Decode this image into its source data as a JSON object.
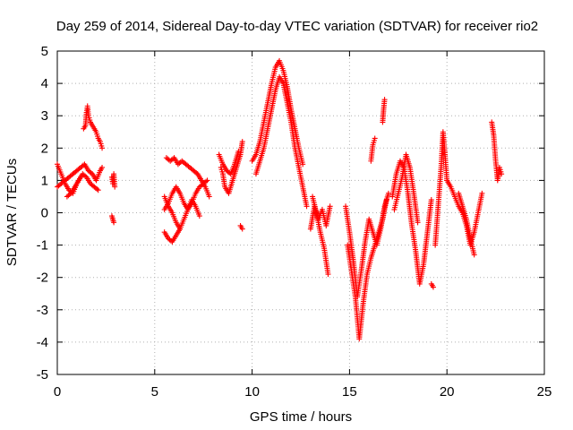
{
  "chart_data": {
    "type": "scatter",
    "title": "Day 259 of 2014, Sidereal Day-to-day VTEC variation (SDTVAR) for receiver rio2",
    "xlabel": "GPS time / hours",
    "ylabel": "SDTVAR / TECUs",
    "xlim": [
      0,
      25
    ],
    "ylim": [
      -5,
      5
    ],
    "xticks": [
      0,
      5,
      10,
      15,
      20,
      25
    ],
    "yticks": [
      -5,
      -4,
      -3,
      -2,
      -1,
      0,
      1,
      2,
      3,
      4,
      5
    ],
    "grid": true,
    "marker": "+",
    "color": "#ff0000",
    "series": [
      {
        "name": "SDTVAR",
        "segments": [
          {
            "x": [
              0.0,
              0.2,
              0.4,
              0.6,
              0.8,
              1.0,
              1.2,
              1.4,
              1.6,
              1.8,
              2.0,
              2.2,
              2.3
            ],
            "y": [
              0.8,
              0.9,
              1.0,
              1.1,
              1.2,
              1.3,
              1.4,
              1.5,
              1.3,
              1.2,
              1.0,
              1.3,
              1.4
            ]
          },
          {
            "x": [
              0.0,
              0.2,
              0.4,
              0.6,
              0.8,
              1.0,
              1.2
            ],
            "y": [
              1.5,
              1.2,
              0.9,
              0.7,
              0.6,
              0.9,
              1.1
            ]
          },
          {
            "x": [
              0.5,
              0.7,
              0.9,
              1.1,
              1.3,
              1.5,
              1.7,
              1.9,
              2.1
            ],
            "y": [
              0.5,
              0.6,
              0.8,
              1.0,
              1.2,
              1.1,
              0.9,
              0.8,
              0.7
            ]
          },
          {
            "x": [
              1.35,
              1.45,
              1.5,
              1.55,
              1.6,
              1.7,
              1.8,
              1.9,
              2.0,
              2.1,
              2.2,
              2.3
            ],
            "y": [
              2.6,
              2.7,
              3.1,
              3.3,
              3.0,
              2.8,
              2.7,
              2.6,
              2.5,
              2.3,
              2.2,
              2.0
            ]
          },
          {
            "x": [
              2.8,
              2.85,
              2.9,
              2.95
            ],
            "y": [
              1.1,
              0.9,
              1.2,
              0.8
            ]
          },
          {
            "x": [
              2.8,
              2.85,
              2.9
            ],
            "y": [
              -0.1,
              -0.2,
              -0.3
            ]
          },
          {
            "x": [
              5.5,
              5.7,
              5.9,
              6.1,
              6.3,
              6.5,
              6.7,
              6.9,
              7.1,
              7.3,
              7.5,
              7.7
            ],
            "y": [
              0.1,
              0.3,
              0.6,
              0.8,
              0.6,
              0.3,
              0.1,
              0.3,
              0.6,
              0.8,
              0.9,
              1.0
            ]
          },
          {
            "x": [
              5.5,
              5.7,
              5.9,
              6.1,
              6.3,
              6.5,
              6.7,
              6.9,
              7.1,
              7.3
            ],
            "y": [
              0.5,
              0.2,
              0.0,
              -0.3,
              -0.5,
              -0.2,
              0.1,
              0.4,
              0.2,
              -0.1
            ]
          },
          {
            "x": [
              5.5,
              5.7,
              5.9,
              6.1,
              6.3
            ],
            "y": [
              -0.6,
              -0.8,
              -0.9,
              -0.7,
              -0.5
            ]
          },
          {
            "x": [
              5.6,
              5.8,
              6.0,
              6.2,
              6.4,
              6.6,
              6.8,
              7.0,
              7.2,
              7.4,
              7.6,
              7.8
            ],
            "y": [
              1.7,
              1.6,
              1.7,
              1.5,
              1.6,
              1.5,
              1.4,
              1.3,
              1.2,
              1.0,
              0.8,
              0.5
            ]
          },
          {
            "x": [
              8.4,
              8.5,
              8.6,
              8.8,
              9.0,
              9.2,
              9.4,
              9.5
            ],
            "y": [
              1.4,
              1.2,
              0.8,
              0.6,
              1.0,
              1.4,
              1.8,
              2.2
            ]
          },
          {
            "x": [
              8.3,
              8.5,
              8.7,
              8.9,
              9.1,
              9.3
            ],
            "y": [
              1.8,
              1.5,
              1.3,
              1.2,
              1.5,
              1.9
            ]
          },
          {
            "x": [
              9.4,
              9.5
            ],
            "y": [
              -0.4,
              -0.5
            ]
          },
          {
            "x": [
              10.0,
              10.2,
              10.4,
              10.6,
              10.8,
              11.0,
              11.2,
              11.4,
              11.6,
              11.8,
              12.0,
              12.2,
              12.4,
              12.6
            ],
            "y": [
              1.6,
              1.8,
              2.2,
              2.8,
              3.4,
              4.0,
              4.5,
              4.7,
              4.4,
              3.9,
              3.2,
              2.6,
              2.0,
              1.5
            ]
          },
          {
            "x": [
              10.2,
              10.4,
              10.6,
              10.8,
              11.0,
              11.2,
              11.4,
              11.6,
              11.8,
              12.0,
              12.2,
              12.4,
              12.6,
              12.8
            ],
            "y": [
              1.2,
              1.6,
              2.0,
              2.6,
              3.2,
              3.8,
              4.2,
              4.0,
              3.4,
              2.8,
              2.0,
              1.4,
              0.8,
              0.2
            ]
          },
          {
            "x": [
              13.0,
              13.2,
              13.4,
              13.6,
              13.8,
              14.0
            ],
            "y": [
              -0.5,
              0.2,
              -0.2,
              0.1,
              -0.4,
              0.2
            ]
          },
          {
            "x": [
              13.1,
              13.3,
              13.5,
              13.7,
              13.9
            ],
            "y": [
              0.5,
              0.0,
              -0.6,
              -1.1,
              -1.9
            ]
          },
          {
            "x": [
              14.8,
              15.0,
              15.2,
              15.4,
              15.6,
              15.8,
              16.0,
              16.2,
              16.4,
              16.6,
              16.8,
              17.0
            ],
            "y": [
              0.2,
              -0.6,
              -1.5,
              -2.6,
              -1.8,
              -0.9,
              -0.2,
              -0.6,
              -1.0,
              -0.5,
              0.2,
              0.6
            ]
          },
          {
            "x": [
              14.9,
              15.1,
              15.3,
              15.5,
              15.7,
              15.9,
              16.1,
              16.3,
              16.5,
              16.7,
              16.9
            ],
            "y": [
              -1.0,
              -1.8,
              -2.6,
              -3.9,
              -2.8,
              -1.9,
              -1.4,
              -1.0,
              -0.6,
              -0.2,
              0.4
            ]
          },
          {
            "x": [
              16.1,
              16.2,
              16.3
            ],
            "y": [
              1.6,
              2.1,
              2.3
            ]
          },
          {
            "x": [
              16.7,
              16.75,
              16.8
            ],
            "y": [
              2.8,
              3.2,
              3.5
            ]
          },
          {
            "x": [
              17.2,
              17.4,
              17.6,
              17.8,
              18.0,
              18.2,
              18.4,
              18.6,
              18.8,
              19.0,
              19.2
            ],
            "y": [
              0.5,
              1.2,
              1.6,
              1.4,
              0.6,
              -0.4,
              -1.2,
              -2.2,
              -1.6,
              -0.6,
              0.4
            ]
          },
          {
            "x": [
              17.3,
              17.5,
              17.7,
              17.9,
              18.1,
              18.3,
              18.5
            ],
            "y": [
              0.1,
              0.6,
              1.1,
              1.8,
              1.4,
              0.6,
              -0.3
            ]
          },
          {
            "x": [
              19.2,
              19.3
            ],
            "y": [
              -2.2,
              -2.3
            ]
          },
          {
            "x": [
              19.4,
              19.5,
              19.6,
              19.7,
              19.8,
              19.9,
              20.0
            ],
            "y": [
              -1.0,
              -0.2,
              0.6,
              1.4,
              2.5,
              1.8,
              1.0
            ]
          },
          {
            "x": [
              20.0,
              20.2,
              20.4,
              20.6,
              20.8,
              21.0,
              21.2,
              21.4,
              21.6,
              21.8
            ],
            "y": [
              1.0,
              0.8,
              0.5,
              0.2,
              0.0,
              -0.4,
              -1.0,
              -0.6,
              0.0,
              0.6
            ]
          },
          {
            "x": [
              20.6,
              20.8,
              21.0,
              21.2,
              21.4
            ],
            "y": [
              0.6,
              0.2,
              -0.2,
              -0.8,
              -1.3
            ]
          },
          {
            "x": [
              22.3,
              22.4,
              22.5,
              22.6,
              22.7,
              22.8
            ],
            "y": [
              2.8,
              2.4,
              1.6,
              1.0,
              1.4,
              1.2
            ]
          }
        ]
      }
    ]
  }
}
